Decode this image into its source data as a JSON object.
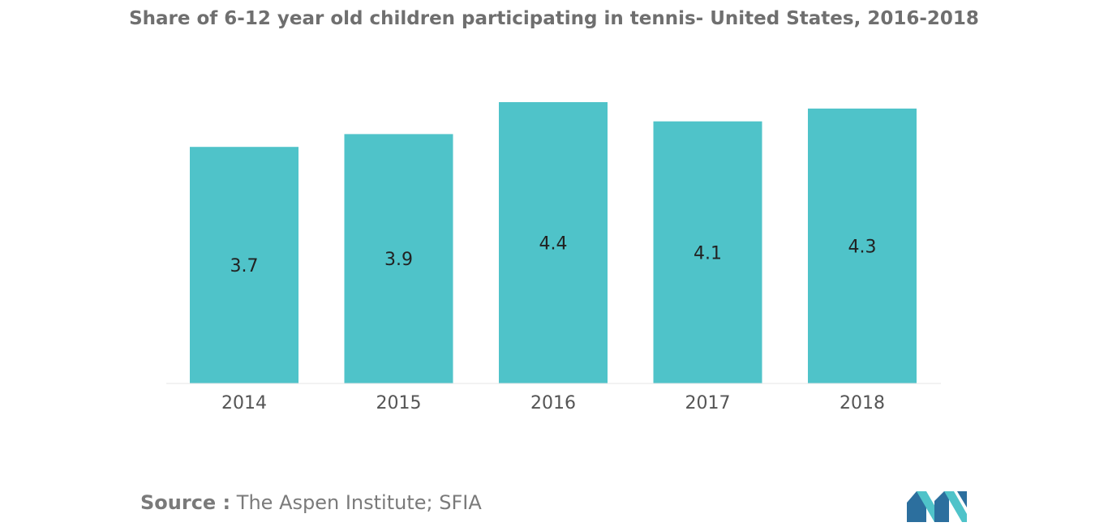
{
  "title": "Share of 6-12 year old children participating in tennis- United States, 2016-2018",
  "chart_data": {
    "type": "bar",
    "title": "Share of 6-12 year old children participating in tennis- United States, 2016-2018",
    "categories": [
      "2014",
      "2015",
      "2016",
      "2017",
      "2018"
    ],
    "values": [
      3.7,
      3.9,
      4.4,
      4.1,
      4.3
    ],
    "value_labels": [
      "3.7",
      "3.9",
      "4.4",
      "4.1",
      "4.3"
    ],
    "xlabel": "",
    "ylabel": "",
    "ylim": [
      0,
      4.4
    ],
    "grid": false,
    "legend": "none",
    "bar_color": "#4fc3c9"
  },
  "source": {
    "label": "Source :",
    "text": "The Aspen Institute; SFIA"
  },
  "colors": {
    "bar": "#4fc3c9",
    "title": "#6f6f6f",
    "axis_text": "#555555",
    "value_text": "#222222",
    "logo_dark": "#2c6f9e",
    "logo_light": "#4fc3c9"
  },
  "logo": {
    "icon": "mordor-intelligence-logo-icon"
  }
}
